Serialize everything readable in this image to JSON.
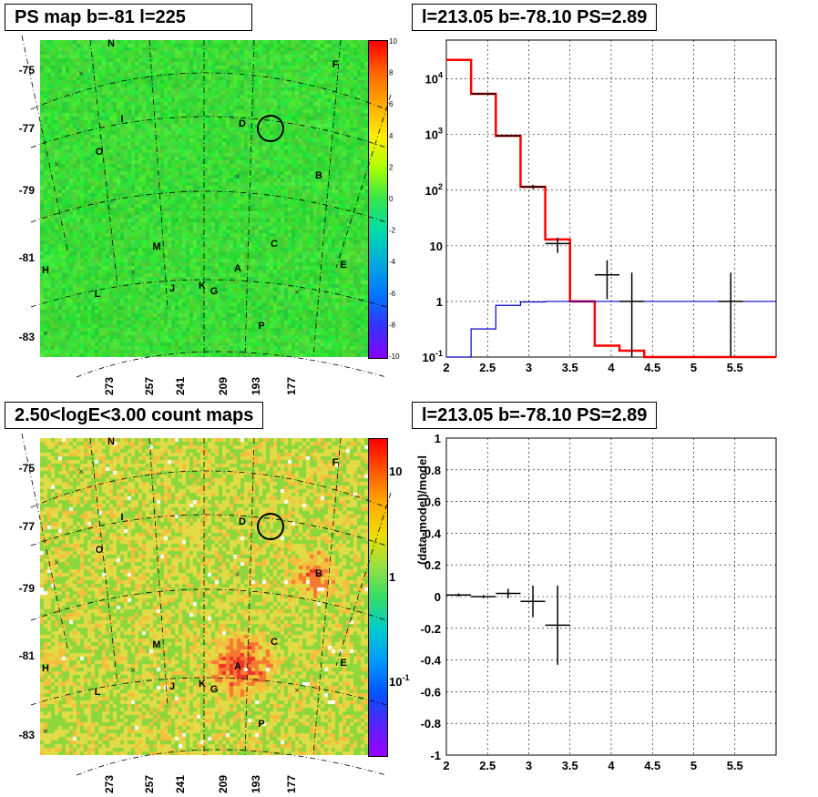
{
  "panels": {
    "ps_map_title": "PS map b=-81 l=225",
    "count_map_title": "2.50<logE<3.00 count maps",
    "spectrum_title": "l=213.05 b=-78.10 PS=2.89",
    "residual_title": "l=213.05 b=-78.10 PS=2.89"
  },
  "maps": {
    "lat_ticks": [
      "-75",
      "-77",
      "-79",
      "-81",
      "-83"
    ],
    "lon_ticks": [
      "273",
      "257",
      "241",
      "209",
      "193",
      "177"
    ],
    "source_labels": [
      "N",
      "F",
      "I",
      "D",
      "O",
      "B",
      "M",
      "C",
      "H",
      "E",
      "A",
      "L",
      "J",
      "K",
      "G",
      "P"
    ],
    "ps_colorbar_ticks": [
      "10",
      "8",
      "6",
      "4",
      "2",
      "0",
      "-2",
      "-4",
      "-6",
      "-8",
      "-10"
    ],
    "count_colorbar_ticks": [
      "10",
      "1",
      "10-1"
    ],
    "colors": {
      "map_background_ps": "#33e64d",
      "map_background_counts": "#e8d94a",
      "circle": "#000000"
    }
  },
  "chart_data": [
    {
      "type": "line",
      "panel": "spectrum",
      "title": "l=213.05 b=-78.10 PS=2.89",
      "xlabel": "",
      "ylabel": "",
      "xlim": [
        2,
        6
      ],
      "ylim": [
        0.1,
        50000
      ],
      "yscale": "log",
      "grid": true,
      "x_ticks": [
        "2",
        "2.5",
        "3",
        "3.5",
        "4",
        "4.5",
        "5",
        "5.5"
      ],
      "y_ticks": [
        "10-1",
        "1",
        "10",
        "10^2",
        "10^3",
        "10^4"
      ],
      "series": [
        {
          "kind": "step-red",
          "color": "#ff0000",
          "edges": [
            2,
            2.3,
            2.6,
            2.9,
            3.2,
            3.5,
            3.8,
            4.1,
            4.4,
            4.7,
            5.0,
            5.3,
            5.6,
            6.0
          ],
          "values": [
            22000,
            5400,
            950,
            115,
            13,
            1.0,
            0.16,
            0.13,
            0.1,
            0.1,
            0.1,
            0.1,
            0.1
          ]
        },
        {
          "kind": "step-blue",
          "color": "#0000cc",
          "edges": [
            2,
            2.3,
            2.6,
            2.9,
            3.2,
            3.5,
            3.8,
            4.1,
            4.4,
            4.7,
            5.0,
            5.3,
            5.6,
            6.0
          ],
          "values": [
            0.1,
            0.32,
            0.85,
            0.98,
            1.0,
            1.0,
            1.0,
            1.0,
            1.0,
            1.0,
            1.0,
            1.0,
            1.0
          ]
        },
        {
          "kind": "points",
          "color": "#000000",
          "points": [
            {
              "x": 2.45,
              "y": 5400,
              "xerr": 0.15,
              "ylo": 5300,
              "yhi": 5500
            },
            {
              "x": 2.75,
              "y": 950,
              "xerr": 0.15,
              "ylo": 920,
              "yhi": 980
            },
            {
              "x": 3.05,
              "y": 115,
              "xerr": 0.15,
              "ylo": 105,
              "yhi": 125
            },
            {
              "x": 3.35,
              "y": 11,
              "xerr": 0.15,
              "ylo": 7.5,
              "yhi": 14
            },
            {
              "x": 3.95,
              "y": 3.0,
              "xerr": 0.15,
              "ylo": 1.1,
              "yhi": 5.5
            },
            {
              "x": 4.25,
              "y": 1.0,
              "xerr": 0.15,
              "ylo": 0.1,
              "yhi": 3.3
            },
            {
              "x": 5.45,
              "y": 1.0,
              "xerr": 0.15,
              "ylo": 0.1,
              "yhi": 3.3
            }
          ]
        }
      ]
    },
    {
      "type": "scatter",
      "panel": "residual",
      "title": "l=213.05 b=-78.10 PS=2.89",
      "xlabel": "",
      "ylabel": "(data-model)/model",
      "xlim": [
        2,
        6
      ],
      "ylim": [
        -1,
        1
      ],
      "grid": true,
      "x_ticks": [
        "2",
        "2.5",
        "3",
        "3.5",
        "4",
        "4.5",
        "5",
        "5.5"
      ],
      "y_ticks": [
        "1",
        "0.8",
        "0.6",
        "0.4",
        "0.2",
        "0",
        "-0.2",
        "-0.4",
        "-0.6",
        "-0.8",
        "-1"
      ],
      "points": [
        {
          "x": 2.15,
          "y": 0.01,
          "xerr": 0.15,
          "yerr": 0.01
        },
        {
          "x": 2.45,
          "y": 0.0,
          "xerr": 0.15,
          "yerr": 0.01
        },
        {
          "x": 2.75,
          "y": 0.02,
          "xerr": 0.15,
          "yerr": 0.03
        },
        {
          "x": 3.05,
          "y": -0.03,
          "xerr": 0.15,
          "yerr": 0.1
        },
        {
          "x": 3.35,
          "y": -0.18,
          "xerr": 0.15,
          "yerr": 0.25
        }
      ]
    }
  ]
}
